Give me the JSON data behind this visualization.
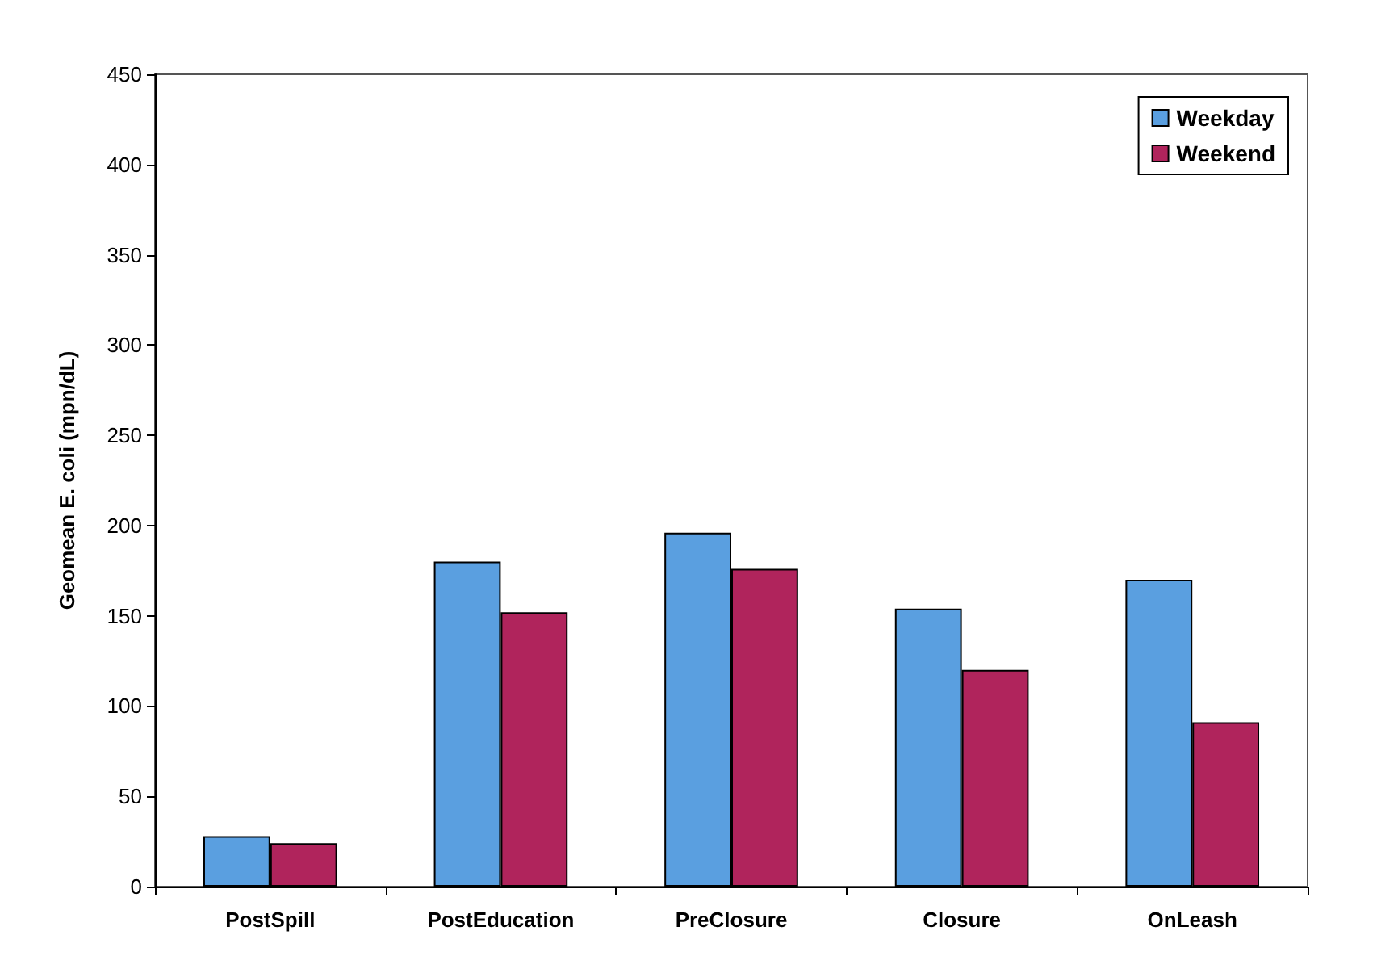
{
  "chart_data": {
    "type": "bar",
    "ylabel": "Geomean E. coli (mpn/dL)",
    "categories": [
      "PostSpill",
      "PostEducation",
      "PreClosure",
      "Closure",
      "OnLeash"
    ],
    "series": [
      {
        "name": "Weekday",
        "color": "#5a9fe0",
        "values": [
          28,
          180,
          196,
          154,
          170
        ]
      },
      {
        "name": "Weekend",
        "color": "#b0245c",
        "values": [
          24,
          152,
          176,
          120,
          91
        ]
      }
    ],
    "ylim": [
      0,
      450
    ],
    "yticks": [
      0,
      50,
      100,
      150,
      200,
      250,
      300,
      350,
      400,
      450
    ],
    "grid": false,
    "legend": "top right"
  }
}
